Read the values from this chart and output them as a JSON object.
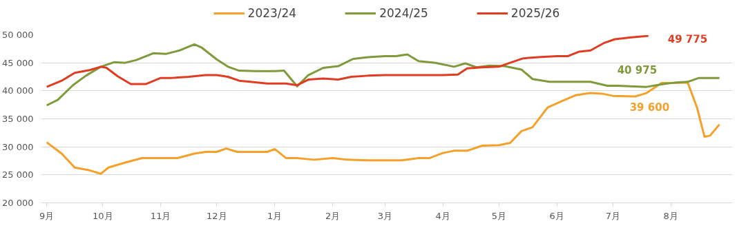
{
  "chart_data": {
    "type": "line",
    "x": [
      "2024-09-01",
      "2024-09-09",
      "2024-09-16",
      "2024-09-24",
      "2024-09-30",
      "2024-10-04",
      "2024-10-13",
      "2024-10-22",
      "2024-11-01",
      "2024-11-10",
      "2024-11-19",
      "2024-11-25",
      "2024-12-01",
      "2024-12-06",
      "2024-12-12",
      "2024-12-19",
      "2024-12-28",
      "2025-01-01",
      "2025-01-07",
      "2025-01-13",
      "2025-01-22",
      "2025-02-01",
      "2025-02-09",
      "2025-02-20",
      "2025-03-01",
      "2025-03-10",
      "2025-03-19",
      "2025-03-25",
      "2025-04-01",
      "2025-04-07",
      "2025-04-14",
      "2025-04-22",
      "2025-05-01",
      "2025-05-07",
      "2025-05-13",
      "2025-05-19",
      "2025-05-27",
      "2025-06-04",
      "2025-06-11",
      "2025-06-19",
      "2025-06-25",
      "2025-07-01",
      "2025-07-13",
      "2025-07-19",
      "2025-07-27",
      "2025-08-03",
      "2025-08-10",
      "2025-08-15",
      "2025-08-19",
      "2025-08-22",
      "2025-08-27"
    ],
    "xlim": [
      "2024-08-29",
      "2025-09-03"
    ],
    "ylim": [
      20000,
      50000
    ],
    "xticks": [
      {
        "value": "2024-09-01",
        "label": "9月"
      },
      {
        "value": "2024-10-01",
        "label": "10月"
      },
      {
        "value": "2024-11-01",
        "label": "11月"
      },
      {
        "value": "2024-12-01",
        "label": "12月"
      },
      {
        "value": "2025-01-01",
        "label": "1月"
      },
      {
        "value": "2025-02-01",
        "label": "2月"
      },
      {
        "value": "2025-03-01",
        "label": "3月"
      },
      {
        "value": "2025-04-01",
        "label": "4月"
      },
      {
        "value": "2025-05-01",
        "label": "5月"
      },
      {
        "value": "2025-06-01",
        "label": "6月"
      },
      {
        "value": "2025-07-01",
        "label": "7月"
      },
      {
        "value": "2025-08-01",
        "label": "8月"
      }
    ],
    "yticks": [
      {
        "value": 20000,
        "label": "20 000"
      },
      {
        "value": 25000,
        "label": "25 000"
      },
      {
        "value": 30000,
        "label": "30 000"
      },
      {
        "value": 35000,
        "label": "35 000"
      },
      {
        "value": 40000,
        "label": "40 000"
      },
      {
        "value": 45000,
        "label": "45 000"
      },
      {
        "value": 50000,
        "label": "50 000"
      }
    ],
    "grid": "y",
    "legend": "top",
    "line_style": "solid",
    "series": [
      {
        "name": "2023/24",
        "color": "#f4a02a",
        "values": [
          30800,
          28800,
          26300,
          25800,
          25200,
          26300,
          27200,
          28000,
          28000,
          28000,
          28800,
          29100,
          29100,
          29700,
          29100,
          29100,
          29100,
          29600,
          28000,
          28000,
          27700,
          28000,
          27700,
          27600,
          27600,
          27600,
          28000,
          28000,
          28900,
          29300,
          29300,
          30200,
          30300,
          30700,
          32800,
          33500,
          37000,
          38200,
          39200,
          39600,
          39500,
          39100,
          39000,
          39600,
          41400,
          41400,
          41500,
          37000,
          31800,
          32000,
          34000
        ]
      },
      {
        "name": "2024/25",
        "color": "#7f9a3a",
        "x": [
          "2024-09-01",
          "2024-09-07",
          "2024-09-15",
          "2024-09-22",
          "2024-09-30",
          "2024-10-07",
          "2024-10-13",
          "2024-10-19",
          "2024-10-28",
          "2024-11-04",
          "2024-11-11",
          "2024-11-19",
          "2024-11-23",
          "2024-12-01",
          "2024-12-07",
          "2024-12-13",
          "2024-12-22",
          "2025-01-01",
          "2025-01-06",
          "2025-01-13",
          "2025-01-19",
          "2025-01-27",
          "2025-02-04",
          "2025-02-12",
          "2025-02-20",
          "2025-03-01",
          "2025-03-07",
          "2025-03-13",
          "2025-03-19",
          "2025-03-28",
          "2025-04-07",
          "2025-04-13",
          "2025-04-19",
          "2025-04-26",
          "2025-05-04",
          "2025-05-13",
          "2025-05-19",
          "2025-05-28",
          "2025-06-10",
          "2025-06-19",
          "2025-06-28",
          "2025-07-04",
          "2025-07-10",
          "2025-07-19",
          "2025-07-28",
          "2025-08-04",
          "2025-08-10",
          "2025-08-16",
          "2025-08-27"
        ],
        "values": [
          37400,
          38400,
          41000,
          42700,
          44300,
          45100,
          45000,
          45500,
          46700,
          46600,
          47200,
          48300,
          47700,
          45600,
          44300,
          43600,
          43500,
          43500,
          43600,
          40800,
          42800,
          44100,
          44400,
          45700,
          46000,
          46200,
          46200,
          46500,
          45300,
          45000,
          44300,
          44900,
          44200,
          44500,
          44400,
          43800,
          42100,
          41600,
          41600,
          41600,
          40900,
          40900,
          40800,
          40700,
          41200,
          41500,
          41600,
          42300,
          42300
        ]
      },
      {
        "name": "2025/26",
        "color": "#e03c22",
        "x": [
          "2024-09-01",
          "2024-09-09",
          "2024-09-16",
          "2024-09-24",
          "2024-09-30",
          "2024-10-03",
          "2024-10-09",
          "2024-10-16",
          "2024-10-24",
          "2024-11-01",
          "2024-11-07",
          "2024-11-16",
          "2024-11-25",
          "2024-12-01",
          "2024-12-07",
          "2024-12-13",
          "2024-12-19",
          "2024-12-28",
          "2025-01-07",
          "2025-01-13",
          "2025-01-19",
          "2025-01-27",
          "2025-02-04",
          "2025-02-11",
          "2025-02-20",
          "2025-03-01",
          "2025-03-16",
          "2025-04-01",
          "2025-04-09",
          "2025-04-14",
          "2025-04-22",
          "2025-05-01",
          "2025-05-07",
          "2025-05-14",
          "2025-05-22",
          "2025-06-01",
          "2025-06-07",
          "2025-06-13",
          "2025-06-19",
          "2025-06-26",
          "2025-07-02",
          "2025-07-10",
          "2025-07-16",
          "2025-07-20"
        ],
        "values": [
          40700,
          41800,
          43200,
          43700,
          44300,
          44100,
          42600,
          41200,
          41200,
          42300,
          42300,
          42500,
          42800,
          42800,
          42500,
          41800,
          41600,
          41300,
          41300,
          41000,
          42000,
          42200,
          42000,
          42500,
          42700,
          42800,
          42800,
          42800,
          42900,
          44000,
          44200,
          44300,
          45000,
          45800,
          46000,
          46200,
          46200,
          47000,
          47200,
          48500,
          49200,
          49500,
          49700,
          49800
        ]
      }
    ],
    "annotations": [
      "39 600",
      "40 975",
      "49 775"
    ]
  }
}
